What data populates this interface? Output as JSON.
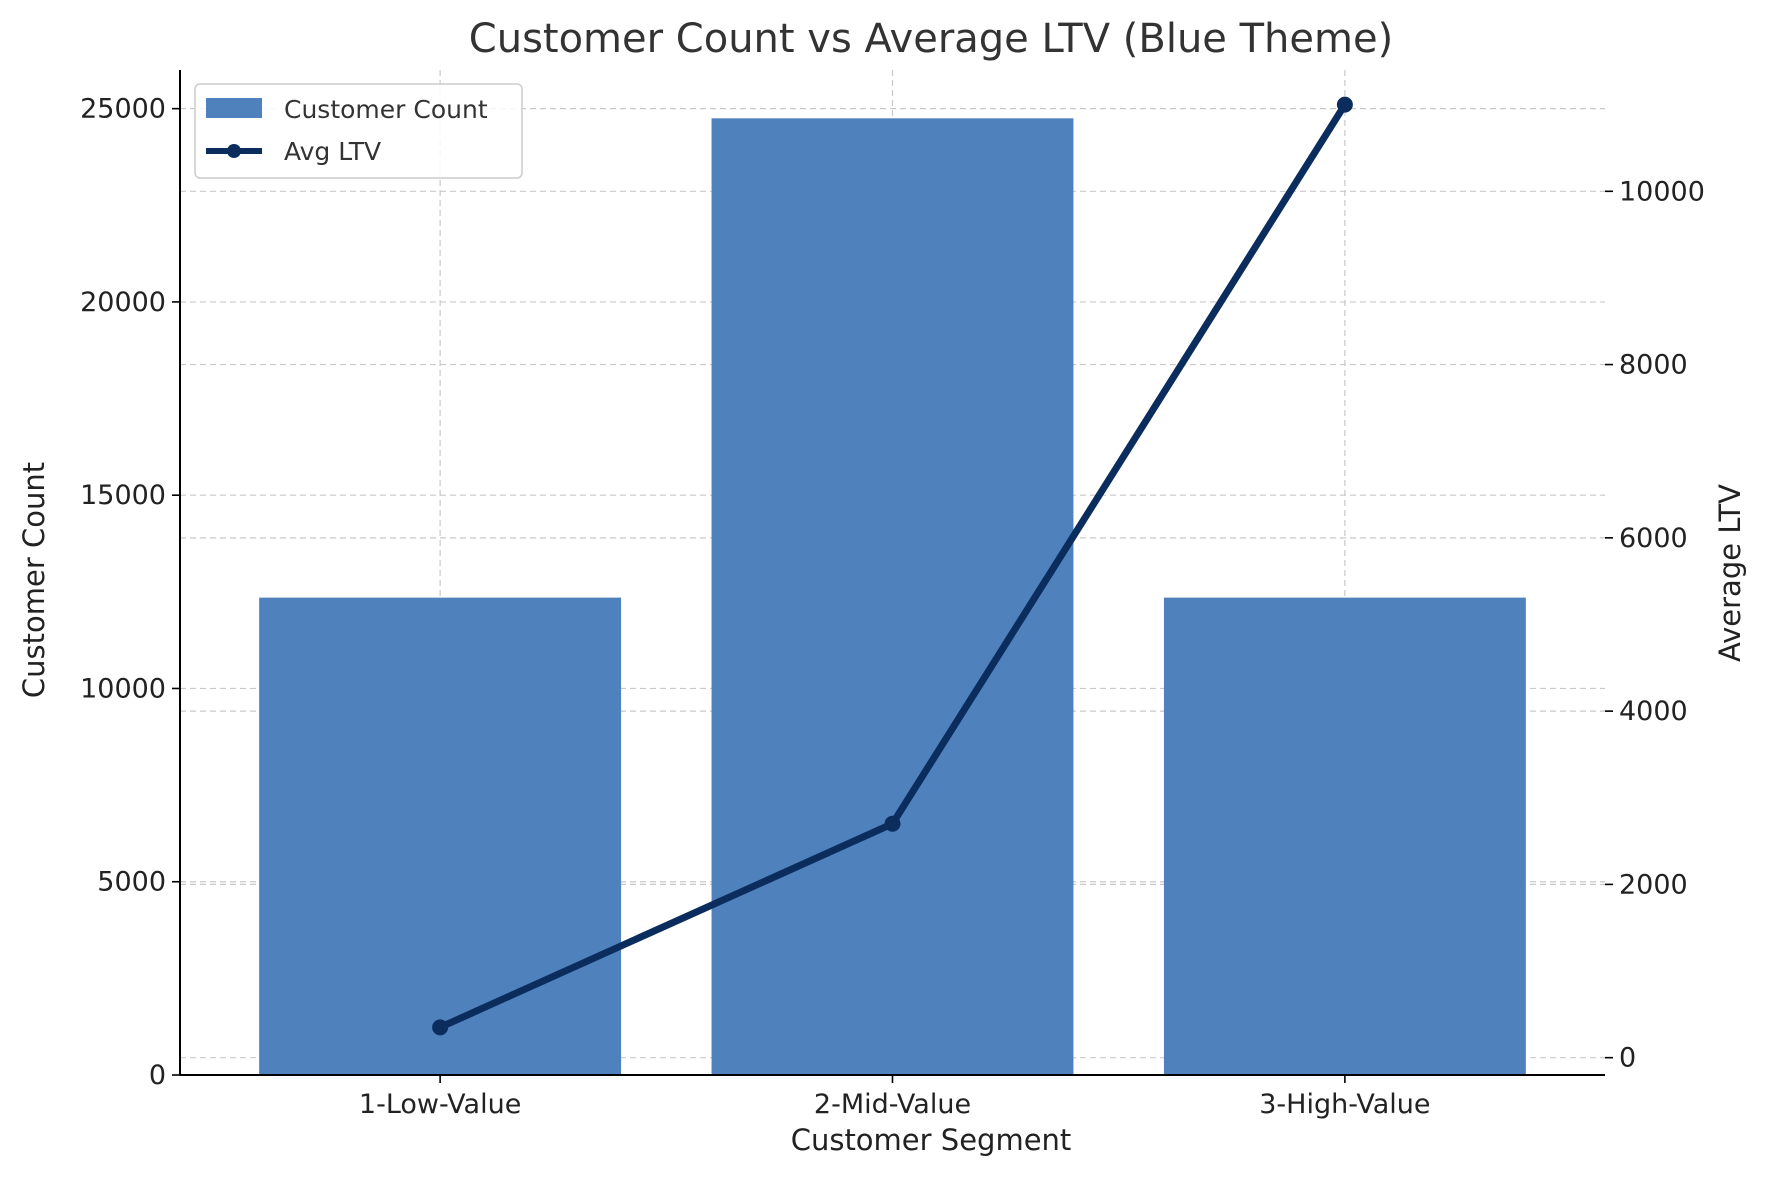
{
  "chart_data": {
    "type": "bar",
    "title": "Customer Count vs Average LTV (Blue Theme)",
    "xlabel": "Customer Segment",
    "ylabel": "Customer Count",
    "y2label": "Average LTV",
    "categories": [
      "1-Low-Value",
      "2-Mid-Value",
      "3-High-Value"
    ],
    "series": [
      {
        "name": "Customer Count",
        "type": "bar",
        "axis": "left",
        "values": [
          12350,
          24750,
          12350
        ],
        "color": "#4f81bd"
      },
      {
        "name": "Avg LTV",
        "type": "line",
        "axis": "right",
        "values": [
          350,
          2700,
          11000
        ],
        "color": "#0b2d5e"
      }
    ],
    "ylim": [
      0,
      26000
    ],
    "y2lim": [
      -200,
      11400
    ],
    "yticks": [
      0,
      5000,
      10000,
      15000,
      20000,
      25000
    ],
    "y2ticks": [
      0,
      2000,
      4000,
      6000,
      8000,
      10000
    ],
    "grid": true,
    "legend": "top-left"
  }
}
